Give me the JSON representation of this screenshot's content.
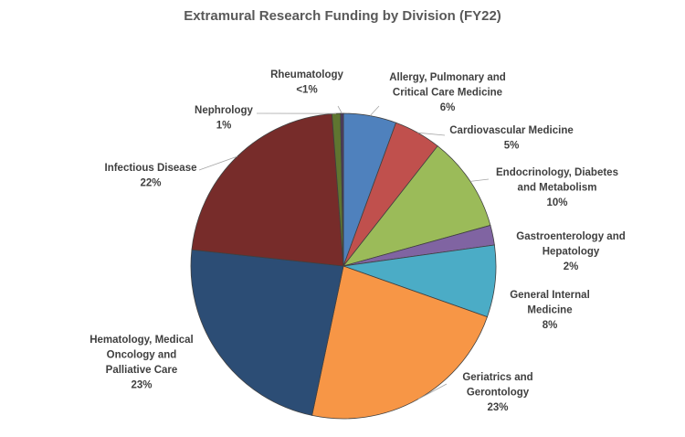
{
  "chart_data": {
    "type": "pie",
    "title": "Extramural Research Funding by Division (FY22)",
    "slices": [
      {
        "name": "Allergy, Pulmonary and Critical Care Medicine",
        "label_lines": [
          "Allergy, Pulmonary and",
          "Critical Care Medicine"
        ],
        "value_label": "6%",
        "value": 5.6,
        "color": "#4f81bd"
      },
      {
        "name": "Cardiovascular Medicine",
        "label_lines": [
          "Cardiovascular Medicine"
        ],
        "value_label": "5%",
        "value": 5.0,
        "color": "#c0504d"
      },
      {
        "name": "Endocrinology, Diabetes and Metabolism",
        "label_lines": [
          "Endocrinology, Diabetes",
          "and Metabolism"
        ],
        "value_label": "10%",
        "value": 10.1,
        "color": "#9bbb59"
      },
      {
        "name": "Gastroenterology and Hepatology",
        "label_lines": [
          "Gastroenterology and",
          "Hepatology"
        ],
        "value_label": "2%",
        "value": 2.1,
        "color": "#8064a2"
      },
      {
        "name": "General Internal Medicine",
        "label_lines": [
          "General Internal",
          "Medicine"
        ],
        "value_label": "8%",
        "value": 7.6,
        "color": "#4bacc6"
      },
      {
        "name": "Geriatrics and Gerontology",
        "label_lines": [
          "Geriatrics and",
          "Gerontology"
        ],
        "value_label": "23%",
        "value": 22.9,
        "color": "#f79646"
      },
      {
        "name": "Hematology, Medical Oncology and Palliative Care",
        "label_lines": [
          "Hematology, Medical",
          "Oncology and",
          "Palliative Care"
        ],
        "value_label": "23%",
        "value": 23.4,
        "color": "#2c4d75"
      },
      {
        "name": "Infectious Disease",
        "label_lines": [
          "Infectious Disease"
        ],
        "value_label": "22%",
        "value": 22.1,
        "color": "#772c2a"
      },
      {
        "name": "Nephrology",
        "label_lines": [
          "Nephrology"
        ],
        "value_label": "1%",
        "value": 0.9,
        "color": "#5f7530"
      },
      {
        "name": "Rheumatology",
        "label_lines": [
          "Rheumatology"
        ],
        "value_label": "<1%",
        "value": 0.3,
        "color": "#4d3b62"
      }
    ]
  }
}
